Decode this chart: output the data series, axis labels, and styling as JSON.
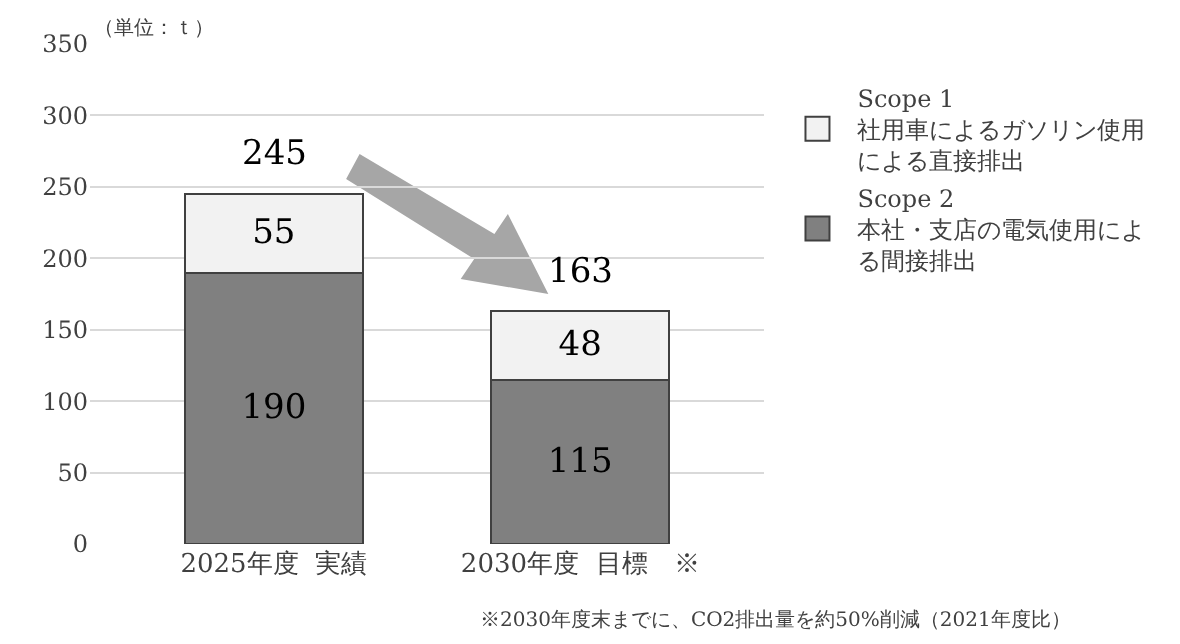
{
  "chart_data": {
    "type": "bar",
    "stacked": true,
    "categories": [
      "2025年度  実績",
      "2030年度  目標　※"
    ],
    "series": [
      {
        "name": "Scope 2\n本社・支店の電気使用による間接排出",
        "color": "#808080",
        "values": [
          190,
          115
        ]
      },
      {
        "name": "Scope 1\n社用車によるガソリン使用による直接排出",
        "color": "#f2f2f2",
        "values": [
          55,
          48
        ]
      }
    ],
    "totals": [
      "245",
      "163"
    ],
    "data_labels": true,
    "ylim": [
      0,
      350
    ],
    "yticks": [
      0,
      50,
      100,
      150,
      200,
      250,
      300,
      350
    ],
    "grid": "y",
    "legend": "right",
    "annotations": [
      "（単位：ｔ）",
      "※2030年度末までに、CO2排出量を約50%削減（2021年度比）"
    ]
  }
}
